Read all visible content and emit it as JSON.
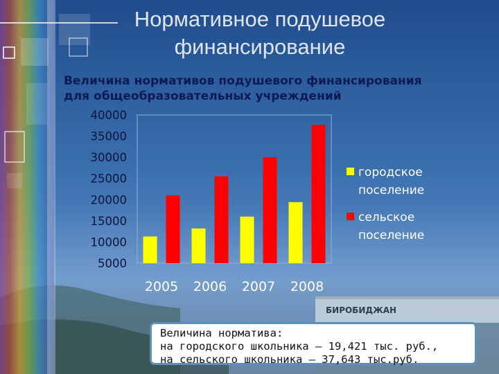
{
  "slide": {
    "title_line1": "Нормативное подушевое",
    "title_line2": "финансирование"
  },
  "chart_data": {
    "type": "bar",
    "title_line1": "Величина нормативов подушевого финансирования",
    "title_line2": "для общеобразовательных учреждений",
    "categories": [
      "2005",
      "2006",
      "2007",
      "2008"
    ],
    "series": [
      {
        "name": "городское поселение",
        "legend_line1": "городское",
        "legend_line2": "поселение",
        "color": "#ffff00",
        "values": [
          11300,
          13200,
          16000,
          19421
        ]
      },
      {
        "name": "сельское поселение",
        "legend_line1": "сельское",
        "legend_line2": "поселение",
        "color": "#ff0000",
        "values": [
          21000,
          25500,
          30000,
          37643
        ]
      }
    ],
    "ylim": [
      5000,
      40000
    ],
    "yticks": [
      "40000",
      "35000",
      "30000",
      "25000",
      "20000",
      "15000",
      "10000",
      "5000"
    ],
    "legend_position": "right",
    "grid": false
  },
  "note": {
    "line1": "Величина норматива:",
    "line2": "на городского школьника – 19,421 тыс. руб.,",
    "line3": "на сельского школьника – 37,643 тыс.руб."
  },
  "colors": {
    "background": "#2f5f9a",
    "plot_border": "#8fb3d6",
    "note_border": "#5b8fbe"
  }
}
